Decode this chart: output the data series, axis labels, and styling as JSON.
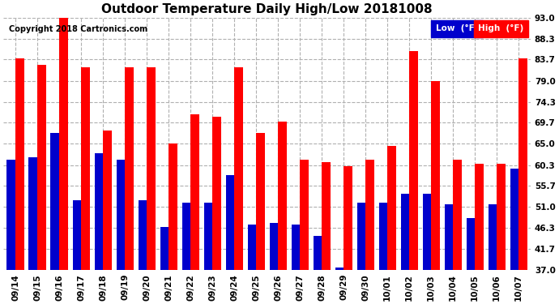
{
  "title": "Outdoor Temperature Daily High/Low 20181008",
  "copyright": "Copyright 2018 Cartronics.com",
  "legend_low": "Low  (°F)",
  "legend_high": "High  (°F)",
  "dates": [
    "09/14",
    "09/15",
    "09/16",
    "09/17",
    "09/18",
    "09/19",
    "09/20",
    "09/21",
    "09/22",
    "09/23",
    "09/24",
    "09/25",
    "09/26",
    "09/27",
    "09/28",
    "09/29",
    "09/30",
    "10/01",
    "10/02",
    "10/03",
    "10/04",
    "10/05",
    "10/06",
    "10/07"
  ],
  "highs": [
    84.0,
    82.5,
    93.5,
    82.0,
    68.0,
    82.0,
    82.0,
    65.0,
    71.5,
    71.0,
    82.0,
    67.5,
    70.0,
    61.5,
    61.0,
    60.0,
    61.5,
    64.5,
    85.5,
    79.0,
    61.5,
    60.5,
    60.5,
    84.0
  ],
  "lows": [
    61.5,
    62.0,
    67.5,
    52.5,
    63.0,
    61.5,
    52.5,
    46.5,
    52.0,
    52.0,
    58.0,
    47.0,
    47.5,
    47.0,
    44.5,
    37.5,
    52.0,
    52.0,
    54.0,
    54.0,
    51.5,
    48.5,
    51.5,
    59.5
  ],
  "ylim_min": 37.0,
  "ylim_max": 93.0,
  "yticks": [
    37.0,
    41.7,
    46.3,
    51.0,
    55.7,
    60.3,
    65.0,
    69.7,
    74.3,
    79.0,
    83.7,
    88.3,
    93.0
  ],
  "high_color": "#ff0000",
  "low_color": "#0000cc",
  "bg_color": "#ffffff",
  "grid_color": "#b0b0b0",
  "title_fontsize": 11,
  "tick_fontsize": 7.5
}
